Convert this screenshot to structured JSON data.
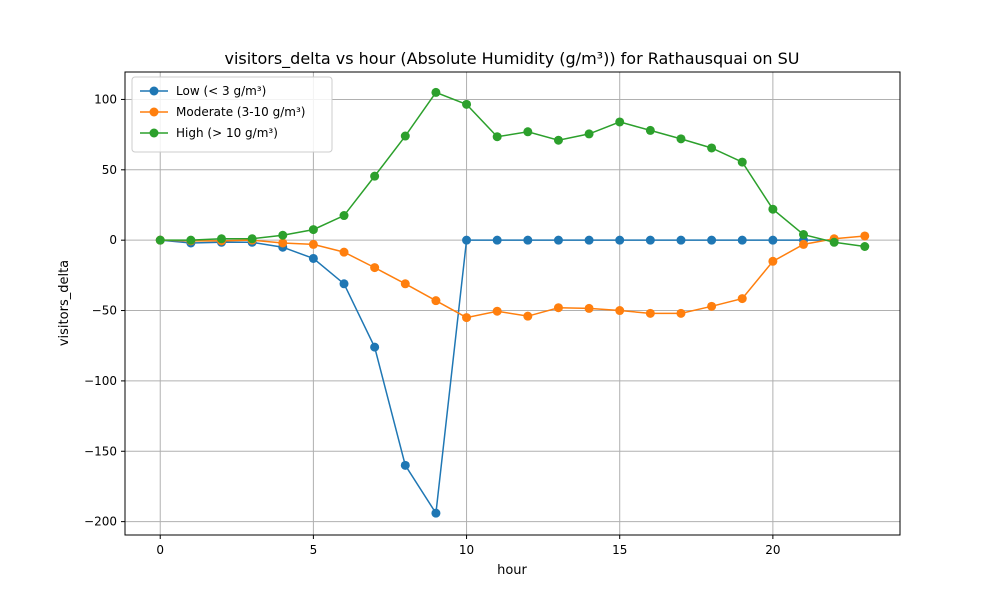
{
  "chart_data": {
    "type": "line",
    "title": "visitors_delta vs hour (Absolute Humidity (g/m³)) for Rathausquai on SU",
    "xlabel": "hour",
    "ylabel": "visitors_delta",
    "xlim": [
      -1.15,
      24.15
    ],
    "ylim": [
      -209.5,
      119.5
    ],
    "xticks": [
      0,
      5,
      10,
      15,
      20
    ],
    "yticks": [
      -200,
      -150,
      -100,
      -50,
      0,
      50,
      100
    ],
    "grid": true,
    "legend_position": "top-left",
    "x": [
      0,
      1,
      2,
      3,
      4,
      5,
      6,
      7,
      8,
      9,
      10,
      11,
      12,
      13,
      14,
      15,
      16,
      17,
      18,
      19,
      20,
      21,
      22,
      23
    ],
    "series": [
      {
        "name": "Low (< 3 g/m³)",
        "color": "#1f77b4",
        "values": [
          0,
          -2,
          -1.5,
          -1.5,
          -5,
          -13,
          -31,
          -76,
          -160,
          -194,
          0,
          0,
          0,
          0,
          0,
          0,
          0,
          0,
          0,
          0,
          0,
          0,
          0,
          null
        ]
      },
      {
        "name": "Moderate (3-10 g/m³)",
        "color": "#ff7f0e",
        "values": [
          0,
          -0.5,
          -0.5,
          0,
          -2,
          -3,
          -8.5,
          -19.5,
          -31,
          -43,
          -55,
          -50.5,
          -54,
          -48,
          -48.5,
          -50,
          -52,
          -52,
          -47,
          -41.5,
          -15,
          -3,
          1,
          3
        ]
      },
      {
        "name": "High (> 10 g/m³)",
        "color": "#2ca02c",
        "values": [
          0,
          0,
          1,
          1,
          3.5,
          7.5,
          17.5,
          45.5,
          74,
          105,
          96.5,
          73.5,
          77,
          71,
          75.5,
          84,
          78,
          72,
          65.5,
          55.5,
          22,
          4,
          -1.5,
          -4.5
        ]
      }
    ]
  }
}
